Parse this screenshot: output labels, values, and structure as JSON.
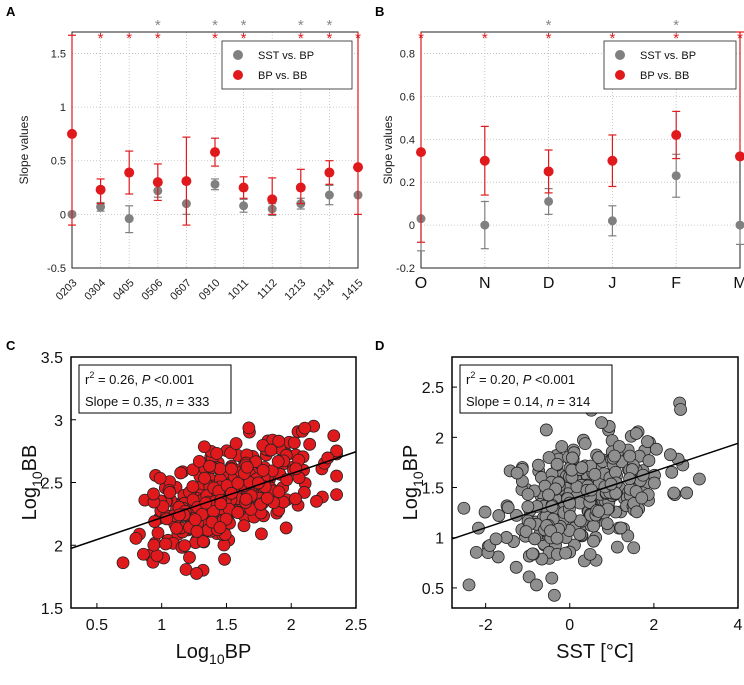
{
  "chart_data": [
    {
      "panel": "A",
      "type": "scatter",
      "ylabel": "Slope values",
      "categories": [
        "0203",
        "0304",
        "0405",
        "0506",
        "0607",
        "0910",
        "1011",
        "1112",
        "1213",
        "1314",
        "1415"
      ],
      "ylim": [
        -0.5,
        1.7
      ],
      "yticks": [
        -0.5,
        0,
        0.5,
        1,
        1.5
      ],
      "ytick_labels": [
        "-0.5",
        "0",
        "0.5",
        "1",
        "1.5"
      ],
      "legend": [
        "SST vs. BP",
        "BP vs. BB"
      ],
      "series": [
        {
          "name": "SST vs. BP",
          "color": "#808080",
          "values": [
            0.0,
            0.07,
            -0.04,
            0.22,
            0.1,
            0.28,
            0.08,
            0.05,
            0.1,
            0.18,
            0.18
          ],
          "err_low": [
            0.0,
            0.04,
            0.13,
            0.06,
            0.1,
            0.05,
            0.06,
            0.06,
            0.05,
            0.09,
            0.0
          ],
          "err_high": [
            0.0,
            0.04,
            0.12,
            0.06,
            0.0,
            0.05,
            0.06,
            0.05,
            0.05,
            0.09,
            0.0
          ]
        },
        {
          "name": "BP vs. BB",
          "color": "#e0191d",
          "values": [
            0.75,
            0.23,
            0.39,
            0.3,
            0.31,
            0.58,
            0.25,
            0.14,
            0.25,
            0.39,
            0.44
          ],
          "err_low": [
            0.85,
            0.13,
            0.2,
            0.17,
            0.41,
            0.13,
            0.1,
            0.14,
            0.15,
            0.11,
            0.44
          ],
          "err_high": [
            0.92,
            0.1,
            0.2,
            0.17,
            0.41,
            0.13,
            0.1,
            0.2,
            0.17,
            0.11,
            1.26
          ]
        }
      ],
      "sig_gray": [
        "0506",
        "0910",
        "1011",
        "1213",
        "1314"
      ],
      "sig_red": [
        "0304",
        "0405",
        "0506",
        "0910",
        "1011",
        "1213",
        "1314",
        "1415"
      ]
    },
    {
      "panel": "B",
      "type": "scatter",
      "ylabel": "Slope values",
      "categories": [
        "O",
        "N",
        "D",
        "J",
        "F",
        "M"
      ],
      "ylim": [
        -0.2,
        0.9
      ],
      "yticks": [
        -0.2,
        0,
        0.2,
        0.4,
        0.6,
        0.8
      ],
      "ytick_labels": [
        "-0.2",
        "0",
        "0.2",
        "0.4",
        "0.6",
        "0.8"
      ],
      "legend": [
        "SST vs. BP",
        "BP vs. BB"
      ],
      "series": [
        {
          "name": "SST vs. BP",
          "color": "#808080",
          "values": [
            0.03,
            0.0,
            0.11,
            0.02,
            0.23,
            0.0
          ],
          "err_low": [
            0.15,
            0.11,
            0.06,
            0.07,
            0.1,
            0.09
          ],
          "err_high": [
            0.0,
            0.11,
            0.06,
            0.07,
            0.1,
            0.0
          ]
        },
        {
          "name": "BP vs. BB",
          "color": "#e0191d",
          "values": [
            0.34,
            0.3,
            0.25,
            0.3,
            0.42,
            0.32
          ],
          "err_low": [
            0.42,
            0.16,
            0.1,
            0.12,
            0.11,
            0.0
          ],
          "err_high": [
            0.56,
            0.16,
            0.1,
            0.12,
            0.11,
            0.58
          ]
        }
      ],
      "sig_gray": [
        "D",
        "F"
      ],
      "sig_red": [
        "O",
        "N",
        "D",
        "J",
        "F",
        "M"
      ]
    },
    {
      "panel": "C",
      "type": "scatter",
      "xlabel_main": "Log",
      "xlabel_sub": "10",
      "xlabel_rest": "BP",
      "ylabel_main": "Log",
      "ylabel_sub": "10",
      "ylabel_rest": "BB",
      "xlim": [
        0.3,
        2.5
      ],
      "ylim": [
        1.5,
        3.5
      ],
      "xticks": [
        0.5,
        1,
        1.5,
        2,
        2.5
      ],
      "xtick_labels": [
        "0.5",
        "1",
        "1.5",
        "2",
        "2.5"
      ],
      "yticks": [
        1.5,
        2,
        2.5,
        3,
        3.5
      ],
      "ytick_labels": [
        "1.5",
        "2",
        "2.5",
        "3",
        "3.5"
      ],
      "point_color": "#e0191d",
      "fit": {
        "slope": 0.35,
        "intercept": 1.87
      },
      "stat_r2": "r",
      "stat_r2_sup": "2",
      "stat_line1_rest": " = 0.26, ",
      "stat_p": "P",
      "stat_p_rest": " <0.001",
      "stat_line2": "Slope = 0.35, ",
      "stat_n": "n",
      "stat_n_rest": " = 333",
      "n": 333,
      "seed": 7,
      "x_mean": 1.5,
      "x_sd": 0.32,
      "resid_sd": 0.19
    },
    {
      "panel": "D",
      "type": "scatter",
      "xlabel": "SST [°C]",
      "ylabel_main": "Log",
      "ylabel_sub": "10",
      "ylabel_rest": "BP",
      "xlim": [
        -2.8,
        4
      ],
      "ylim": [
        0.3,
        2.8
      ],
      "xticks": [
        -2,
        0,
        2,
        4
      ],
      "xtick_labels": [
        "-2",
        "0",
        "2",
        "4"
      ],
      "yticks": [
        0.5,
        1,
        1.5,
        2,
        2.5
      ],
      "ytick_labels": [
        "0.5",
        "1",
        "1.5",
        "2",
        "2.5"
      ],
      "point_color": "#8f8f8f",
      "fit": {
        "slope": 0.14,
        "intercept": 1.38
      },
      "stat_r2": "r",
      "stat_r2_sup": "2",
      "stat_line1_rest": " = 0.20, ",
      "stat_p": "P",
      "stat_p_rest": " <0.001",
      "stat_line2": "Slope = 0.14, ",
      "stat_n": "n",
      "stat_n_rest": " = 314",
      "n": 314,
      "seed": 11,
      "x_mean": 0.3,
      "x_sd": 1.0,
      "resid_sd": 0.3
    }
  ]
}
